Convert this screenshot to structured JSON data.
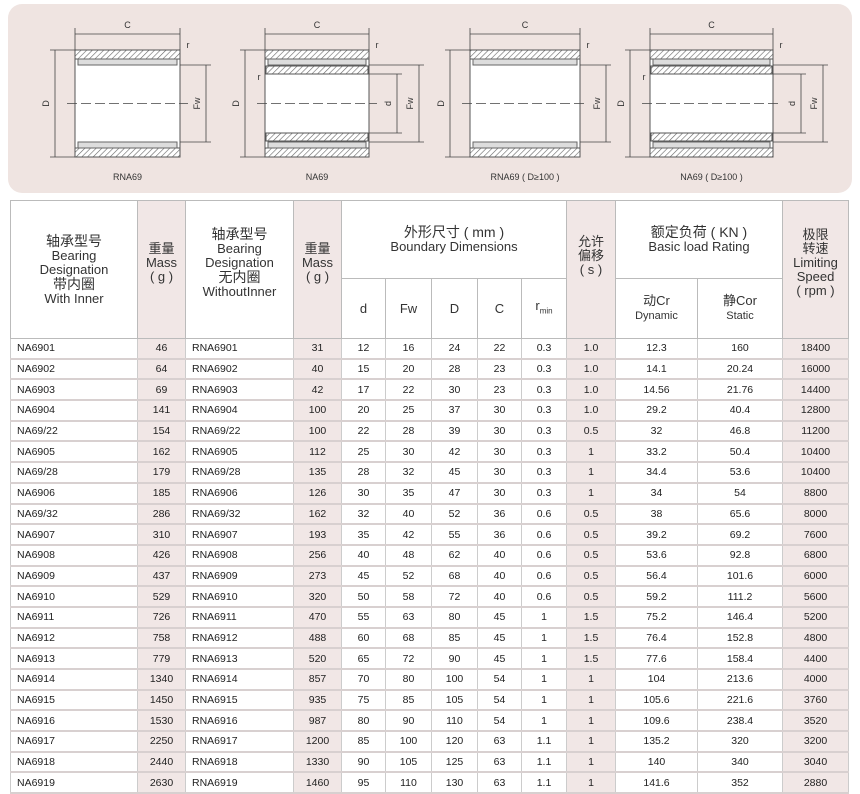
{
  "drawings": [
    {
      "label": "RNA69",
      "type": "RNA"
    },
    {
      "label": "NA69",
      "type": "NA"
    },
    {
      "label": "RNA69 ( D≥100 )",
      "type": "RNA"
    },
    {
      "label": "NA69 ( D≥100 )",
      "type": "NA"
    }
  ],
  "dim_labels": {
    "C": "C",
    "D": "D",
    "Fw": "Fw",
    "d": "d",
    "r": "r"
  },
  "header": {
    "with_inner_cn": "轴承型号",
    "with_inner_en1": "Bearing",
    "with_inner_en2": "Designation",
    "with_inner_cn2": "带内圈",
    "with_inner_en3": "With Inner",
    "mass_cn": "重量",
    "mass_en": "Mass",
    "mass_unit": "( g )",
    "without_inner_cn": "轴承型号",
    "without_inner_en1": "Bearing",
    "without_inner_en2": "Designation",
    "without_inner_cn2": "无内圈",
    "without_inner_en3": "WithoutInner",
    "dims_cn": "外形尺寸 ( mm )",
    "dims_en": "Boundary Dimensions",
    "d": "d",
    "Fw": "Fw",
    "D": "D",
    "C": "C",
    "rmin_r": "r",
    "rmin_sub": "min",
    "s_cn1": "允许",
    "s_cn2": "偏移",
    "s_unit": "( s )",
    "load_cn": "额定负荷 ( KN )",
    "load_en": "Basic load Rating",
    "cr_cn": "动Cr",
    "cr_en": "Dynamic",
    "cor_cn": "静Cor",
    "cor_en": "Static",
    "speed_cn1": "极限",
    "speed_cn2": "转速",
    "speed_en1": "Limiting",
    "speed_en2": "Speed",
    "speed_unit": "( rpm )"
  },
  "rows": [
    [
      "NA6901",
      "46",
      "RNA6901",
      "31",
      "12",
      "16",
      "24",
      "22",
      "0.3",
      "1.0",
      "12.3",
      "160",
      "18400"
    ],
    [
      "NA6902",
      "64",
      "RNA6902",
      "40",
      "15",
      "20",
      "28",
      "23",
      "0.3",
      "1.0",
      "14.1",
      "20.24",
      "16000"
    ],
    [
      "NA6903",
      "69",
      "RNA6903",
      "42",
      "17",
      "22",
      "30",
      "23",
      "0.3",
      "1.0",
      "14.56",
      "21.76",
      "14400"
    ],
    [
      "NA6904",
      "141",
      "RNA6904",
      "100",
      "20",
      "25",
      "37",
      "30",
      "0.3",
      "1.0",
      "29.2",
      "40.4",
      "12800"
    ],
    [
      "NA69/22",
      "154",
      "RNA69/22",
      "100",
      "22",
      "28",
      "39",
      "30",
      "0.3",
      "0.5",
      "32",
      "46.8",
      "11200"
    ],
    [
      "NA6905",
      "162",
      "RNA6905",
      "112",
      "25",
      "30",
      "42",
      "30",
      "0.3",
      "1",
      "33.2",
      "50.4",
      "10400"
    ],
    [
      "NA69/28",
      "179",
      "RNA69/28",
      "135",
      "28",
      "32",
      "45",
      "30",
      "0.3",
      "1",
      "34.4",
      "53.6",
      "10400"
    ],
    [
      "NA6906",
      "185",
      "RNA6906",
      "126",
      "30",
      "35",
      "47",
      "30",
      "0.3",
      "1",
      "34",
      "54",
      "8800"
    ],
    [
      "NA69/32",
      "286",
      "RNA69/32",
      "162",
      "32",
      "40",
      "52",
      "36",
      "0.6",
      "0.5",
      "38",
      "65.6",
      "8000"
    ],
    [
      "NA6907",
      "310",
      "RNA6907",
      "193",
      "35",
      "42",
      "55",
      "36",
      "0.6",
      "0.5",
      "39.2",
      "69.2",
      "7600"
    ],
    [
      "NA6908",
      "426",
      "RNA6908",
      "256",
      "40",
      "48",
      "62",
      "40",
      "0.6",
      "0.5",
      "53.6",
      "92.8",
      "6800"
    ],
    [
      "NA6909",
      "437",
      "RNA6909",
      "273",
      "45",
      "52",
      "68",
      "40",
      "0.6",
      "0.5",
      "56.4",
      "101.6",
      "6000"
    ],
    [
      "NA6910",
      "529",
      "RNA6910",
      "320",
      "50",
      "58",
      "72",
      "40",
      "0.6",
      "0.5",
      "59.2",
      "111.2",
      "5600"
    ],
    [
      "NA6911",
      "726",
      "RNA6911",
      "470",
      "55",
      "63",
      "80",
      "45",
      "1",
      "1.5",
      "75.2",
      "146.4",
      "5200"
    ],
    [
      "NA6912",
      "758",
      "RNA6912",
      "488",
      "60",
      "68",
      "85",
      "45",
      "1",
      "1.5",
      "76.4",
      "152.8",
      "4800"
    ],
    [
      "NA6913",
      "779",
      "RNA6913",
      "520",
      "65",
      "72",
      "90",
      "45",
      "1",
      "1.5",
      "77.6",
      "158.4",
      "4400"
    ],
    [
      "NA6914",
      "1340",
      "RNA6914",
      "857",
      "70",
      "80",
      "100",
      "54",
      "1",
      "1",
      "104",
      "213.6",
      "4000"
    ],
    [
      "NA6915",
      "1450",
      "RNA6915",
      "935",
      "75",
      "85",
      "105",
      "54",
      "1",
      "1",
      "105.6",
      "221.6",
      "3760"
    ],
    [
      "NA6916",
      "1530",
      "RNA6916",
      "987",
      "80",
      "90",
      "110",
      "54",
      "1",
      "1",
      "109.6",
      "238.4",
      "3520"
    ],
    [
      "NA6917",
      "2250",
      "RNA6917",
      "1200",
      "85",
      "100",
      "120",
      "63",
      "1.1",
      "1",
      "135.2",
      "320",
      "3200"
    ],
    [
      "NA6918",
      "2440",
      "RNA6918",
      "1330",
      "90",
      "105",
      "125",
      "63",
      "1.1",
      "1",
      "140",
      "340",
      "3040"
    ],
    [
      "NA6919",
      "2630",
      "RNA6919",
      "1460",
      "95",
      "110",
      "130",
      "63",
      "1.1",
      "1",
      "141.6",
      "352",
      "2880"
    ]
  ],
  "colors": {
    "shaded_column": "#f1e7e6",
    "panel": "#efe4e1"
  }
}
